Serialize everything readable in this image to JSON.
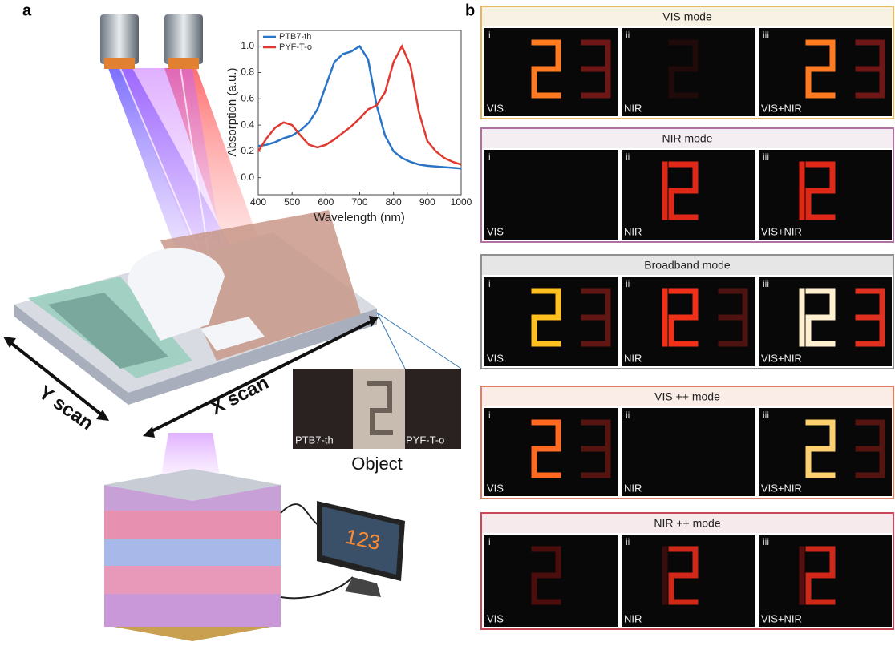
{
  "panel_labels": [
    "a",
    "b"
  ],
  "chart_data": {
    "type": "line",
    "x_label": "Wavelength (nm)",
    "y_label": "Absorption (a.u.)",
    "x": [
      400,
      425,
      450,
      475,
      500,
      525,
      550,
      575,
      600,
      625,
      650,
      675,
      700,
      725,
      750,
      775,
      800,
      825,
      850,
      875,
      900,
      925,
      950,
      975,
      1000
    ],
    "series": [
      {
        "name": "PTB7-th",
        "color": "#2a74c8",
        "values": [
          0.24,
          0.25,
          0.27,
          0.3,
          0.32,
          0.36,
          0.42,
          0.52,
          0.7,
          0.88,
          0.94,
          0.96,
          1.0,
          0.9,
          0.55,
          0.32,
          0.2,
          0.15,
          0.12,
          0.1,
          0.09,
          0.085,
          0.08,
          0.075,
          0.07
        ]
      },
      {
        "name": "PYF-T-o",
        "color": "#e03a30",
        "values": [
          0.2,
          0.3,
          0.38,
          0.42,
          0.4,
          0.32,
          0.25,
          0.23,
          0.25,
          0.29,
          0.34,
          0.39,
          0.45,
          0.52,
          0.55,
          0.65,
          0.88,
          1.0,
          0.85,
          0.5,
          0.28,
          0.2,
          0.15,
          0.12,
          0.1
        ]
      }
    ],
    "xlim": [
      400,
      1000
    ],
    "xticks": [
      400,
      500,
      600,
      700,
      800,
      900,
      1000
    ],
    "ylim": [
      -0.13,
      1.12
    ],
    "yticks": [
      {
        "value": 0,
        "label": "0.0"
      },
      0.2,
      0.4,
      0.6,
      0.8,
      {
        "value": 1,
        "label": "1.0"
      }
    ],
    "legend": "upper left"
  },
  "diagram": {
    "scan_labels": [
      "Y scan",
      "X scan"
    ],
    "object_labels": [
      "PTB7-th",
      "PYF-T-o"
    ],
    "object_caption": "Object",
    "monitor_display": "123"
  },
  "modes": [
    {
      "title": "VIS mode",
      "panels": [
        {
          "numeral": "i",
          "label": "VIS"
        },
        {
          "numeral": "ii",
          "label": "NIR"
        },
        {
          "numeral": "iii",
          "label": "VIS+NIR"
        }
      ]
    },
    {
      "title": "NIR mode",
      "panels": [
        {
          "numeral": "i",
          "label": "VIS"
        },
        {
          "numeral": "ii",
          "label": "NIR"
        },
        {
          "numeral": "iii",
          "label": "VIS+NIR"
        }
      ]
    },
    {
      "title": "Broadband mode",
      "panels": [
        {
          "numeral": "i",
          "label": "VIS"
        },
        {
          "numeral": "ii",
          "label": "NIR"
        },
        {
          "numeral": "iii",
          "label": "VIS+NIR"
        }
      ]
    },
    {
      "title": "VIS ++ mode",
      "panels": [
        {
          "numeral": "i",
          "label": "VIS"
        },
        {
          "numeral": "ii",
          "label": "NIR"
        },
        {
          "numeral": "iii",
          "label": "VIS+NIR"
        }
      ]
    },
    {
      "title": "NIR ++ mode",
      "panels": [
        {
          "numeral": "i",
          "label": "VIS"
        },
        {
          "numeral": "ii",
          "label": "NIR"
        },
        {
          "numeral": "iii",
          "label": "VIS+NIR"
        }
      ]
    }
  ]
}
